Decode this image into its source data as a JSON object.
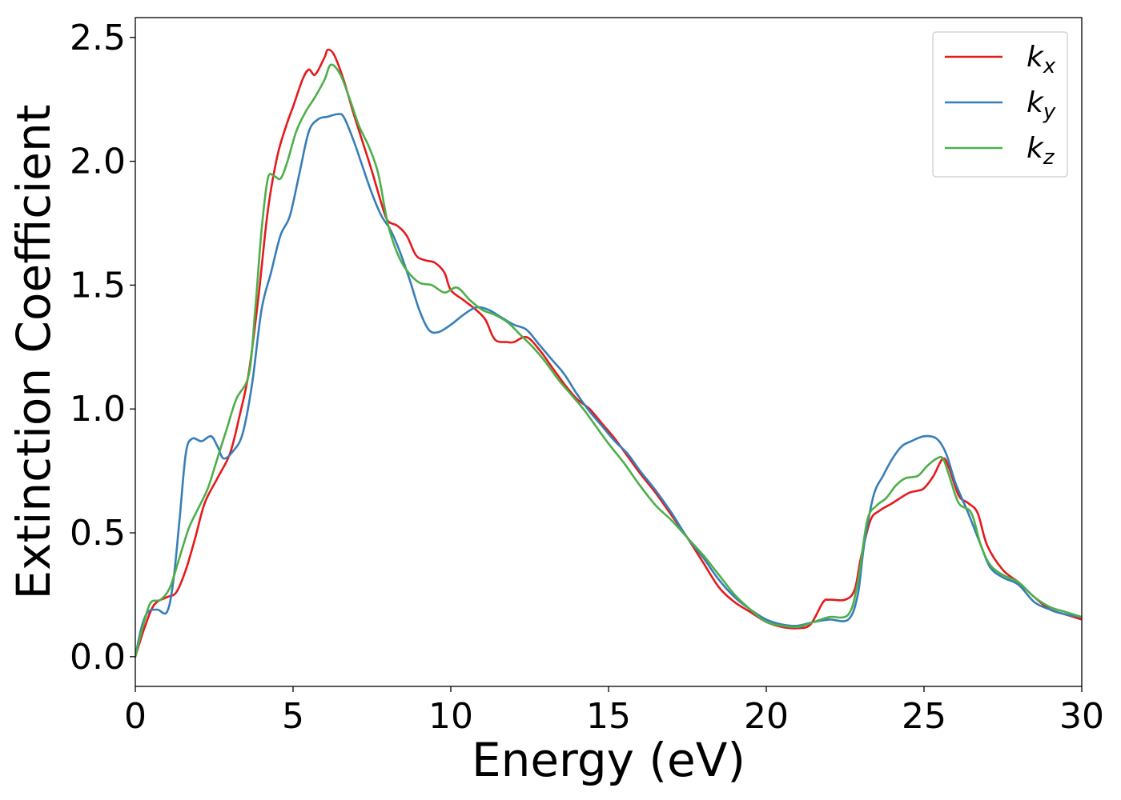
{
  "chart_data": {
    "type": "line",
    "xlabel": "Energy (eV)",
    "ylabel": "Extinction Coefficient",
    "xlim": [
      0,
      30
    ],
    "ylim": [
      -0.12,
      2.58
    ],
    "xticks": [
      0,
      5,
      10,
      15,
      20,
      25,
      30
    ],
    "xtick_labels": [
      "0",
      "5",
      "10",
      "15",
      "20",
      "25",
      "30"
    ],
    "yticks": [
      0.0,
      0.5,
      1.0,
      1.5,
      2.0,
      2.5
    ],
    "ytick_labels": [
      "0.0",
      "0.5",
      "1.0",
      "1.5",
      "2.0",
      "2.5"
    ],
    "grid": false,
    "legend_position": "top-right",
    "series": [
      {
        "name": "k_x",
        "label_main": "k",
        "label_sub": "x",
        "color": "#e41a1c",
        "points": [
          [
            0,
            0.0
          ],
          [
            0.3,
            0.12
          ],
          [
            0.6,
            0.21
          ],
          [
            1.0,
            0.24
          ],
          [
            1.3,
            0.26
          ],
          [
            1.6,
            0.35
          ],
          [
            1.9,
            0.48
          ],
          [
            2.2,
            0.62
          ],
          [
            2.6,
            0.72
          ],
          [
            3.0,
            0.82
          ],
          [
            3.3,
            0.97
          ],
          [
            3.6,
            1.15
          ],
          [
            3.9,
            1.45
          ],
          [
            4.2,
            1.8
          ],
          [
            4.5,
            2.02
          ],
          [
            4.8,
            2.15
          ],
          [
            5.0,
            2.22
          ],
          [
            5.3,
            2.33
          ],
          [
            5.5,
            2.37
          ],
          [
            5.7,
            2.35
          ],
          [
            6.0,
            2.42
          ],
          [
            6.1,
            2.45
          ],
          [
            6.3,
            2.43
          ],
          [
            6.6,
            2.33
          ],
          [
            6.9,
            2.2
          ],
          [
            7.2,
            2.08
          ],
          [
            7.5,
            1.96
          ],
          [
            7.8,
            1.83
          ],
          [
            8.0,
            1.76
          ],
          [
            8.3,
            1.74
          ],
          [
            8.6,
            1.7
          ],
          [
            8.9,
            1.62
          ],
          [
            9.2,
            1.6
          ],
          [
            9.5,
            1.59
          ],
          [
            9.8,
            1.55
          ],
          [
            10.0,
            1.48
          ],
          [
            10.4,
            1.44
          ],
          [
            10.8,
            1.4
          ],
          [
            11.1,
            1.36
          ],
          [
            11.4,
            1.28
          ],
          [
            11.8,
            1.27
          ],
          [
            12.0,
            1.27
          ],
          [
            12.4,
            1.29
          ],
          [
            12.8,
            1.24
          ],
          [
            13.2,
            1.17
          ],
          [
            13.6,
            1.1
          ],
          [
            14.0,
            1.04
          ],
          [
            14.4,
            1.0
          ],
          [
            14.8,
            0.94
          ],
          [
            15.2,
            0.88
          ],
          [
            15.6,
            0.81
          ],
          [
            16.0,
            0.74
          ],
          [
            16.5,
            0.66
          ],
          [
            17.0,
            0.57
          ],
          [
            17.5,
            0.48
          ],
          [
            18.0,
            0.38
          ],
          [
            18.5,
            0.28
          ],
          [
            19.0,
            0.22
          ],
          [
            19.5,
            0.18
          ],
          [
            20.0,
            0.14
          ],
          [
            20.5,
            0.12
          ],
          [
            21.0,
            0.115
          ],
          [
            21.4,
            0.13
          ],
          [
            21.8,
            0.22
          ],
          [
            22.0,
            0.23
          ],
          [
            22.5,
            0.23
          ],
          [
            22.8,
            0.27
          ],
          [
            23.0,
            0.4
          ],
          [
            23.3,
            0.55
          ],
          [
            23.6,
            0.59
          ],
          [
            24.0,
            0.62
          ],
          [
            24.5,
            0.66
          ],
          [
            24.8,
            0.67
          ],
          [
            25.0,
            0.68
          ],
          [
            25.3,
            0.73
          ],
          [
            25.6,
            0.8
          ],
          [
            25.8,
            0.76
          ],
          [
            26.1,
            0.65
          ],
          [
            26.4,
            0.62
          ],
          [
            26.7,
            0.58
          ],
          [
            27.0,
            0.45
          ],
          [
            27.5,
            0.35
          ],
          [
            28.0,
            0.3
          ],
          [
            28.5,
            0.24
          ],
          [
            29.0,
            0.19
          ],
          [
            29.5,
            0.17
          ],
          [
            30.0,
            0.15
          ]
        ]
      },
      {
        "name": "k_y",
        "label_main": "k",
        "label_sub": "y",
        "color": "#377eb8",
        "points": [
          [
            0,
            0.0
          ],
          [
            0.2,
            0.12
          ],
          [
            0.4,
            0.18
          ],
          [
            0.7,
            0.19
          ],
          [
            1.0,
            0.18
          ],
          [
            1.2,
            0.3
          ],
          [
            1.4,
            0.55
          ],
          [
            1.6,
            0.82
          ],
          [
            1.8,
            0.88
          ],
          [
            2.1,
            0.87
          ],
          [
            2.4,
            0.89
          ],
          [
            2.6,
            0.85
          ],
          [
            2.8,
            0.8
          ],
          [
            3.1,
            0.83
          ],
          [
            3.4,
            0.9
          ],
          [
            3.7,
            1.1
          ],
          [
            4.0,
            1.4
          ],
          [
            4.3,
            1.55
          ],
          [
            4.6,
            1.7
          ],
          [
            4.9,
            1.78
          ],
          [
            5.2,
            1.95
          ],
          [
            5.5,
            2.12
          ],
          [
            5.8,
            2.17
          ],
          [
            6.1,
            2.18
          ],
          [
            6.4,
            2.19
          ],
          [
            6.6,
            2.18
          ],
          [
            6.9,
            2.09
          ],
          [
            7.2,
            1.98
          ],
          [
            7.5,
            1.87
          ],
          [
            7.8,
            1.78
          ],
          [
            8.1,
            1.72
          ],
          [
            8.4,
            1.63
          ],
          [
            8.7,
            1.52
          ],
          [
            9.0,
            1.4
          ],
          [
            9.3,
            1.32
          ],
          [
            9.6,
            1.31
          ],
          [
            10.0,
            1.34
          ],
          [
            10.4,
            1.38
          ],
          [
            10.8,
            1.41
          ],
          [
            11.2,
            1.4
          ],
          [
            11.6,
            1.37
          ],
          [
            12.0,
            1.34
          ],
          [
            12.4,
            1.32
          ],
          [
            12.8,
            1.26
          ],
          [
            13.2,
            1.2
          ],
          [
            13.6,
            1.14
          ],
          [
            14.0,
            1.06
          ],
          [
            14.4,
            0.99
          ],
          [
            14.8,
            0.93
          ],
          [
            15.2,
            0.87
          ],
          [
            15.6,
            0.82
          ],
          [
            16.0,
            0.75
          ],
          [
            16.5,
            0.67
          ],
          [
            17.0,
            0.58
          ],
          [
            17.5,
            0.48
          ],
          [
            18.0,
            0.4
          ],
          [
            18.5,
            0.31
          ],
          [
            19.0,
            0.24
          ],
          [
            19.5,
            0.19
          ],
          [
            20.0,
            0.15
          ],
          [
            20.5,
            0.13
          ],
          [
            21.0,
            0.125
          ],
          [
            21.5,
            0.14
          ],
          [
            22.0,
            0.15
          ],
          [
            22.6,
            0.15
          ],
          [
            22.9,
            0.25
          ],
          [
            23.1,
            0.45
          ],
          [
            23.4,
            0.65
          ],
          [
            23.7,
            0.73
          ],
          [
            24.0,
            0.8
          ],
          [
            24.3,
            0.85
          ],
          [
            24.6,
            0.87
          ],
          [
            25.0,
            0.89
          ],
          [
            25.4,
            0.88
          ],
          [
            25.7,
            0.82
          ],
          [
            26.0,
            0.7
          ],
          [
            26.4,
            0.58
          ],
          [
            26.8,
            0.45
          ],
          [
            27.1,
            0.36
          ],
          [
            27.5,
            0.32
          ],
          [
            28.0,
            0.29
          ],
          [
            28.5,
            0.22
          ],
          [
            29.0,
            0.19
          ],
          [
            29.5,
            0.17
          ],
          [
            30.0,
            0.16
          ]
        ]
      },
      {
        "name": "k_z",
        "label_main": "k",
        "label_sub": "z",
        "color": "#4daf4a",
        "points": [
          [
            0,
            0.0
          ],
          [
            0.3,
            0.15
          ],
          [
            0.5,
            0.22
          ],
          [
            0.8,
            0.23
          ],
          [
            1.1,
            0.28
          ],
          [
            1.4,
            0.4
          ],
          [
            1.7,
            0.52
          ],
          [
            2.0,
            0.6
          ],
          [
            2.3,
            0.68
          ],
          [
            2.6,
            0.8
          ],
          [
            2.9,
            0.92
          ],
          [
            3.2,
            1.04
          ],
          [
            3.6,
            1.14
          ],
          [
            3.8,
            1.4
          ],
          [
            4.0,
            1.72
          ],
          [
            4.2,
            1.93
          ],
          [
            4.4,
            1.94
          ],
          [
            4.6,
            1.93
          ],
          [
            4.8,
            1.99
          ],
          [
            5.1,
            2.12
          ],
          [
            5.4,
            2.2
          ],
          [
            5.7,
            2.26
          ],
          [
            6.0,
            2.33
          ],
          [
            6.2,
            2.39
          ],
          [
            6.5,
            2.35
          ],
          [
            6.8,
            2.25
          ],
          [
            7.1,
            2.14
          ],
          [
            7.4,
            2.06
          ],
          [
            7.7,
            1.95
          ],
          [
            8.0,
            1.75
          ],
          [
            8.3,
            1.63
          ],
          [
            8.6,
            1.56
          ],
          [
            9.0,
            1.51
          ],
          [
            9.4,
            1.5
          ],
          [
            9.8,
            1.47
          ],
          [
            10.2,
            1.49
          ],
          [
            10.6,
            1.44
          ],
          [
            11.0,
            1.4
          ],
          [
            11.4,
            1.38
          ],
          [
            11.8,
            1.35
          ],
          [
            12.2,
            1.3
          ],
          [
            12.6,
            1.25
          ],
          [
            13.0,
            1.19
          ],
          [
            13.4,
            1.12
          ],
          [
            13.8,
            1.06
          ],
          [
            14.2,
            1.0
          ],
          [
            14.6,
            0.93
          ],
          [
            15.0,
            0.86
          ],
          [
            15.5,
            0.78
          ],
          [
            16.0,
            0.69
          ],
          [
            16.5,
            0.61
          ],
          [
            17.0,
            0.55
          ],
          [
            17.5,
            0.48
          ],
          [
            18.0,
            0.41
          ],
          [
            18.5,
            0.33
          ],
          [
            19.0,
            0.25
          ],
          [
            19.5,
            0.19
          ],
          [
            20.0,
            0.14
          ],
          [
            20.5,
            0.125
          ],
          [
            21.0,
            0.12
          ],
          [
            21.5,
            0.14
          ],
          [
            22.0,
            0.16
          ],
          [
            22.6,
            0.17
          ],
          [
            22.9,
            0.3
          ],
          [
            23.2,
            0.55
          ],
          [
            23.5,
            0.61
          ],
          [
            23.8,
            0.64
          ],
          [
            24.1,
            0.69
          ],
          [
            24.4,
            0.72
          ],
          [
            24.8,
            0.73
          ],
          [
            25.1,
            0.77
          ],
          [
            25.4,
            0.8
          ],
          [
            25.6,
            0.8
          ],
          [
            25.8,
            0.73
          ],
          [
            26.1,
            0.62
          ],
          [
            26.5,
            0.58
          ],
          [
            26.8,
            0.45
          ],
          [
            27.1,
            0.37
          ],
          [
            27.5,
            0.33
          ],
          [
            28.0,
            0.3
          ],
          [
            28.5,
            0.24
          ],
          [
            29.0,
            0.2
          ],
          [
            29.5,
            0.18
          ],
          [
            30.0,
            0.16
          ]
        ]
      }
    ]
  }
}
